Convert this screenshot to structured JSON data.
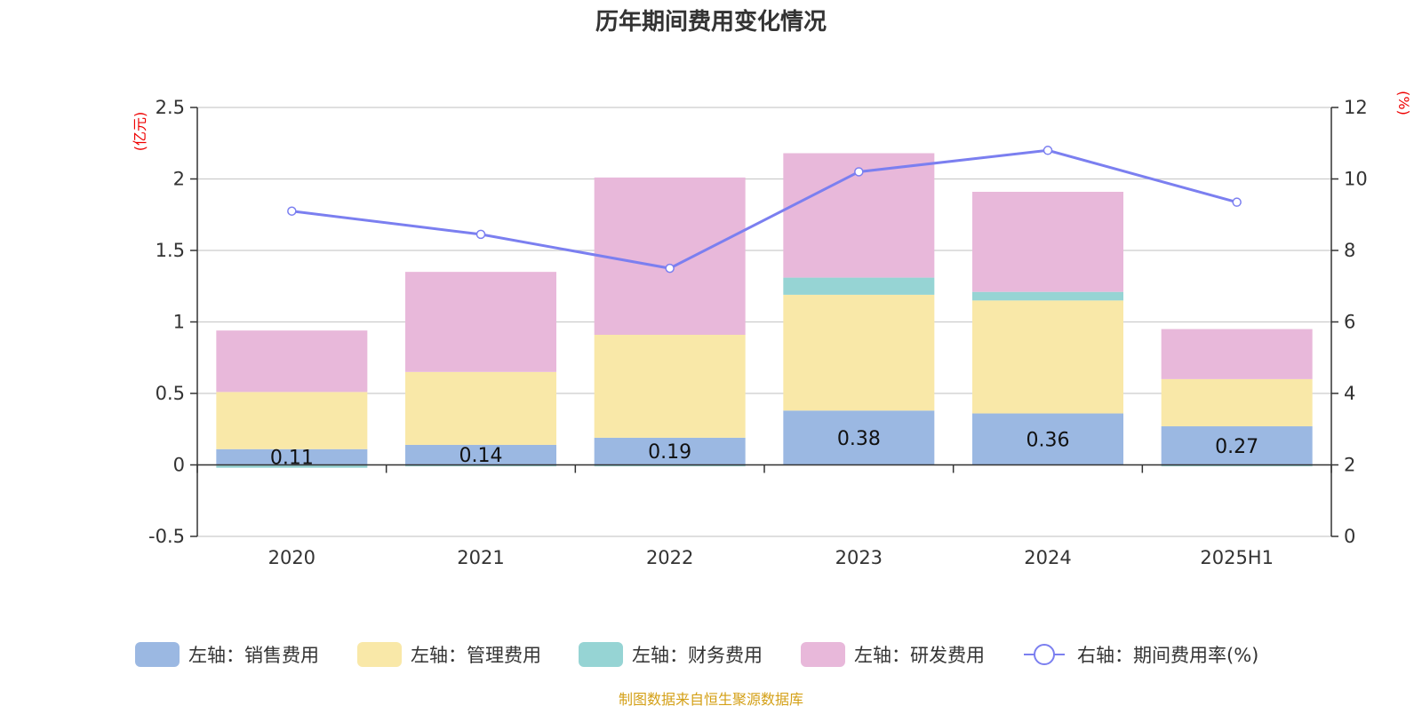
{
  "chart_data": {
    "type": "bar",
    "title": "历年期间费用变化情况",
    "categories": [
      "2020",
      "2021",
      "2022",
      "2023",
      "2024",
      "2025H1"
    ],
    "left_axis": {
      "unit": "(亿元)",
      "ylim": [
        -0.5,
        2.5
      ],
      "ticks": [
        "2.5",
        "2",
        "1.5",
        "1",
        "0.5",
        "0",
        "-0.5"
      ],
      "tick_values": [
        2.5,
        2,
        1.5,
        1,
        0.5,
        0,
        -0.5
      ]
    },
    "right_axis": {
      "unit": "(%)",
      "ylim": [
        0,
        12
      ],
      "ticks": [
        "12",
        "10",
        "8",
        "6",
        "4",
        "2",
        "0"
      ],
      "tick_values": [
        12,
        10,
        8,
        6,
        4,
        2,
        0
      ]
    },
    "series": [
      {
        "name": "左轴：销售费用",
        "axis": "left",
        "type": "bar",
        "color": "#9bb8e2",
        "values": [
          0.11,
          0.14,
          0.19,
          0.38,
          0.36,
          0.27
        ],
        "labels": [
          "0.11",
          "0.14",
          "0.19",
          "0.38",
          "0.36",
          "0.27"
        ]
      },
      {
        "name": "左轴：管理费用",
        "axis": "left",
        "type": "bar",
        "color": "#f9e8a8",
        "values": [
          0.4,
          0.51,
          0.72,
          0.81,
          0.79,
          0.33
        ]
      },
      {
        "name": "左轴：财务费用",
        "axis": "left",
        "type": "bar",
        "color": "#96d4d4",
        "values": [
          -0.02,
          -0.01,
          -0.01,
          0.12,
          0.06,
          -0.01
        ]
      },
      {
        "name": "左轴：研发费用",
        "axis": "left",
        "type": "bar",
        "color": "#e8b8da",
        "values": [
          0.43,
          0.7,
          1.1,
          0.87,
          0.7,
          0.35
        ]
      },
      {
        "name": "右轴：期间费用率(%)",
        "axis": "right",
        "type": "line",
        "color": "#7b7ff0",
        "values": [
          9.1,
          8.45,
          7.5,
          10.2,
          10.8,
          9.35
        ]
      }
    ],
    "legend_position": "bottom",
    "grid": true
  },
  "source_note": "制图数据来自恒生聚源数据库"
}
